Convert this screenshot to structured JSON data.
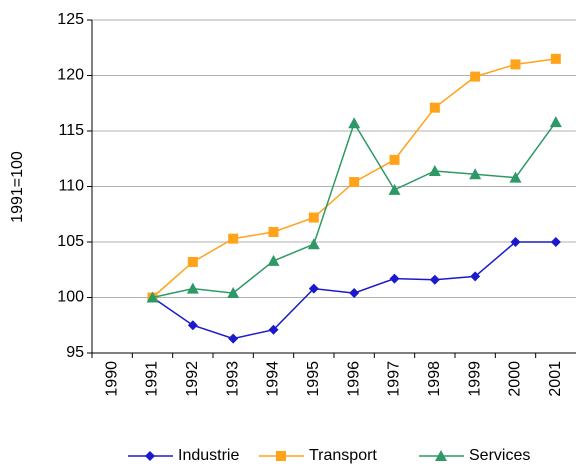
{
  "chart_data": {
    "type": "line",
    "ylabel": "1991=100",
    "categories": [
      "1990",
      "1991",
      "1992",
      "1993",
      "1994",
      "1995",
      "1996",
      "1997",
      "1998",
      "1999",
      "2000",
      "2001"
    ],
    "series": [
      {
        "name": "Industrie",
        "color": "#1a1acc",
        "marker": "diamond",
        "values": [
          null,
          100,
          97.5,
          96.3,
          97.1,
          100.8,
          100.4,
          101.7,
          101.6,
          101.9,
          105,
          105
        ]
      },
      {
        "name": "Transport",
        "color": "#ffa31a",
        "marker": "square",
        "values": [
          null,
          100,
          103.2,
          105.3,
          105.9,
          107.2,
          110.4,
          112.4,
          117.1,
          119.9,
          121,
          121.5
        ]
      },
      {
        "name": "Services",
        "color": "#2e9966",
        "marker": "triangle",
        "values": [
          null,
          100,
          100.8,
          100.4,
          103.3,
          104.8,
          115.7,
          109.7,
          111.4,
          111.1,
          110.8,
          115.8
        ]
      }
    ],
    "ylim": [
      95,
      125
    ],
    "yticks": [
      95,
      100,
      105,
      110,
      115,
      120,
      125
    ],
    "grid": true,
    "legend": "bottom"
  }
}
